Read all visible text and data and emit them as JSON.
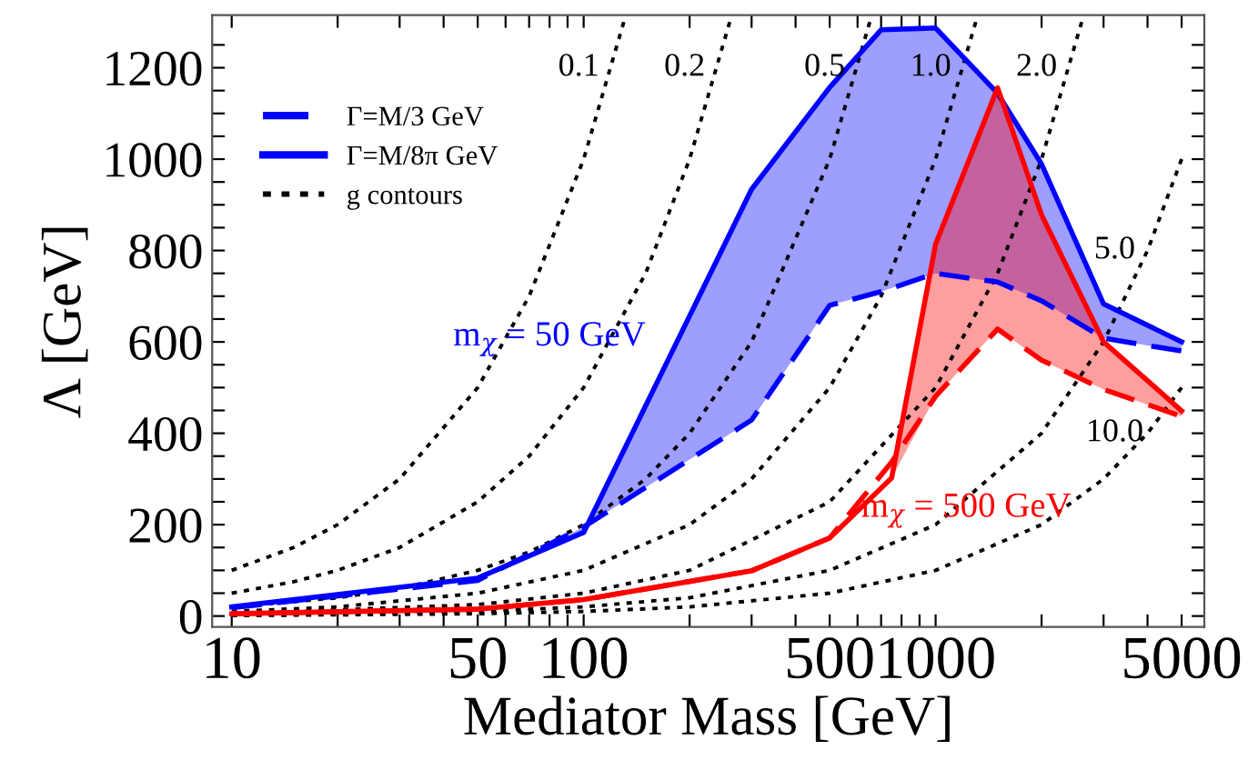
{
  "chart_data": {
    "type": "line",
    "xlabel": "Mediator Mass [GeV]",
    "ylabel": "Λ [GeV]",
    "log": "x",
    "grid": false,
    "legend": "top left",
    "xlim": [
      8.8,
      5800
    ],
    "ylim": [
      -24,
      1315
    ],
    "xticks": [
      10,
      {
        "value": 20,
        "label": null
      },
      {
        "value": 30,
        "label": null
      },
      {
        "value": 40,
        "label": null
      },
      50,
      {
        "value": 60,
        "label": null
      },
      {
        "value": 70,
        "label": null
      },
      {
        "value": 80,
        "label": null
      },
      {
        "value": 90,
        "label": null
      },
      100,
      {
        "value": 200,
        "label": null
      },
      {
        "value": 300,
        "label": null
      },
      {
        "value": 400,
        "label": null
      },
      500,
      {
        "value": 600,
        "label": null
      },
      {
        "value": 700,
        "label": null
      },
      {
        "value": 800,
        "label": null
      },
      {
        "value": 900,
        "label": null
      },
      1000,
      {
        "value": 2000,
        "label": null
      },
      {
        "value": 3000,
        "label": null
      },
      {
        "value": 4000,
        "label": null
      },
      5000
    ],
    "yticks": [
      0,
      {
        "value": 50,
        "label": null
      },
      {
        "value": 100,
        "label": null
      },
      {
        "value": 150,
        "label": null
      },
      200,
      {
        "value": 250,
        "label": null
      },
      {
        "value": 300,
        "label": null
      },
      {
        "value": 350,
        "label": null
      },
      400,
      {
        "value": 450,
        "label": null
      },
      {
        "value": 500,
        "label": null
      },
      {
        "value": 550,
        "label": null
      },
      600,
      {
        "value": 650,
        "label": null
      },
      {
        "value": 700,
        "label": null
      },
      {
        "value": 750,
        "label": null
      },
      800,
      {
        "value": 850,
        "label": null
      },
      {
        "value": 900,
        "label": null
      },
      {
        "value": 950,
        "label": null
      },
      1000,
      {
        "value": 1050,
        "label": null
      },
      {
        "value": 1100,
        "label": null
      },
      {
        "value": 1150,
        "label": null
      },
      1200,
      {
        "value": 1250,
        "label": null
      }
    ],
    "series": [
      {
        "name": "Γ=M/8π GeV",
        "color": "#0000ff",
        "line_style": "solid",
        "x": [
          10,
          50,
          100,
          300,
          500,
          700,
          1000,
          1500,
          2000,
          3000,
          5000
        ],
        "values": [
          20,
          83,
          183,
          934,
          1157,
          1283,
          1287,
          1144,
          989,
          683,
          600
        ],
        "lower": [
          18,
          78,
          195,
          429,
          680,
          710,
          750,
          731,
          690,
          608,
          580
        ],
        "upper": [
          20,
          83,
          183,
          934,
          1157,
          1283,
          1287,
          1144,
          989,
          683,
          600
        ]
      },
      {
        "name": "Γ=M/3 GeV",
        "color": "#0000ff",
        "line_style": "dashed",
        "x": [
          10,
          50,
          100,
          300,
          500,
          700,
          1000,
          1500,
          2000,
          3000,
          5000
        ],
        "values": [
          18,
          78,
          195,
          429,
          680,
          710,
          750,
          731,
          690,
          608,
          580
        ]
      },
      {
        "color": "#ff0000",
        "line_style": "solid",
        "x": [
          10,
          50,
          100,
          300,
          500,
          750,
          1000,
          1500,
          2000,
          3000,
          5000
        ],
        "values": [
          5,
          15,
          36,
          99,
          171,
          302,
          814,
          1156,
          878,
          600,
          449
        ],
        "lower": [
          5,
          15,
          36,
          99,
          171,
          302,
          481,
          628,
          560,
          496,
          437
        ],
        "upper": [
          5,
          15,
          36,
          99,
          171,
          302,
          814,
          1156,
          878,
          600,
          449
        ]
      },
      {
        "color": "#ff0000",
        "line_style": "dashed",
        "x": [
          10,
          50,
          100,
          300,
          500,
          750,
          1000,
          1500,
          2000,
          3000,
          5000
        ],
        "values": [
          5,
          15,
          36,
          99,
          171,
          337,
          481,
          628,
          560,
          496,
          437
        ]
      },
      {
        "name": "g contours",
        "color": "#000000",
        "line_style": "dotted",
        "x": [
          10,
          15,
          20,
          30,
          50,
          70,
          100,
          130
        ],
        "values": [
          100,
          150,
          200,
          300,
          500,
          700,
          1000,
          1300
        ]
      },
      {
        "color": "#000000",
        "line_style": "dotted",
        "x": [
          10,
          15,
          20,
          30,
          50,
          70,
          100,
          150,
          200,
          260
        ],
        "values": [
          50,
          75,
          100,
          150,
          250,
          350,
          500,
          750,
          1000,
          1300
        ]
      },
      {
        "color": "#000000",
        "line_style": "dotted",
        "x": [
          10,
          20,
          30,
          50,
          70,
          100,
          150,
          200,
          300,
          500,
          650
        ],
        "values": [
          20,
          40,
          60,
          100,
          140,
          200,
          300,
          400,
          600,
          1000,
          1300
        ]
      },
      {
        "color": "#000000",
        "line_style": "dotted",
        "x": [
          10,
          20,
          50,
          100,
          200,
          300,
          500,
          700,
          1000,
          1300
        ],
        "values": [
          10,
          20,
          50,
          100,
          200,
          300,
          500,
          700,
          1000,
          1300
        ]
      },
      {
        "color": "#000000",
        "line_style": "dotted",
        "x": [
          10,
          50,
          100,
          200,
          500,
          1000,
          1500,
          2000,
          2600
        ],
        "values": [
          5,
          25,
          50,
          100,
          250,
          500,
          750,
          1000,
          1300
        ]
      },
      {
        "color": "#000000",
        "line_style": "dotted",
        "x": [
          10,
          50,
          100,
          200,
          500,
          1000,
          2000,
          3000,
          4000,
          5000
        ],
        "values": [
          2,
          10,
          20,
          40,
          100,
          200,
          400,
          600,
          800,
          1000
        ]
      },
      {
        "color": "#000000",
        "line_style": "dotted",
        "x": [
          10,
          50,
          100,
          200,
          500,
          1000,
          2000,
          3000,
          4000,
          5000
        ],
        "values": [
          1,
          5,
          10,
          20,
          50,
          100,
          200,
          300,
          400,
          500
        ]
      }
    ],
    "annotations": [
      {
        "text": "0.1",
        "x": 120,
        "y": 1200
      },
      {
        "text": "0.2",
        "x": 240,
        "y": 1200
      },
      {
        "text": "0.5",
        "x": 600,
        "y": 1200
      },
      {
        "text": "1.0",
        "x": 1200,
        "y": 1200
      },
      {
        "text": "2.0",
        "x": 2400,
        "y": 1200
      },
      {
        "text": "5.0",
        "x": 4000,
        "y": 800
      },
      {
        "text": "10.0",
        "x": 4000,
        "y": 400
      },
      "m$_{χ}$ = 50 GeV",
      "m$_{χ}$ = 500 GeV"
    ]
  }
}
